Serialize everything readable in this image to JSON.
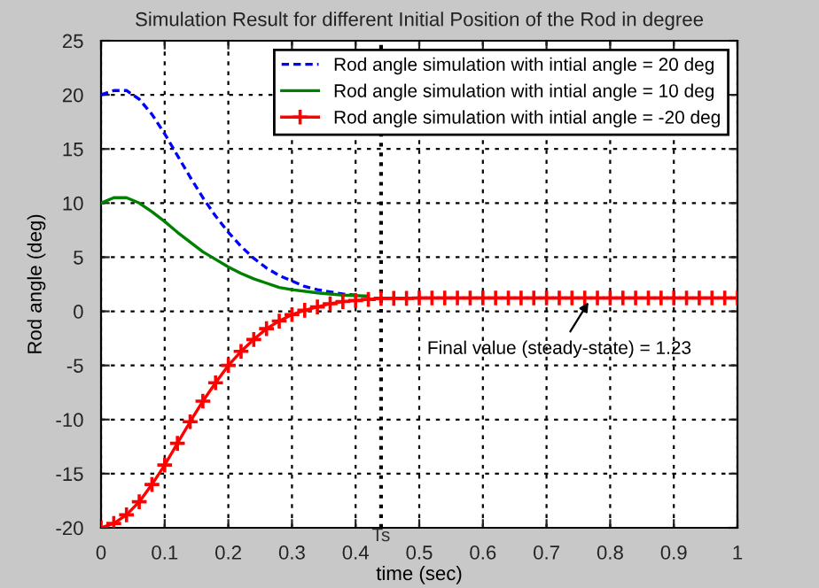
{
  "chart_data": {
    "type": "line",
    "title": "Simulation Result for different Initial Position of the Rod in degree",
    "xlabel": "time (sec)",
    "ylabel": "Rod angle (deg)",
    "xlim": [
      0,
      1
    ],
    "ylim": [
      -20,
      25
    ],
    "xticks": [
      0,
      0.1,
      0.2,
      0.3,
      0.4,
      0.5,
      0.6,
      0.7,
      0.8,
      0.9,
      1
    ],
    "yticks": [
      -20,
      -15,
      -10,
      -5,
      0,
      5,
      10,
      15,
      20,
      25
    ],
    "grid": true,
    "legend": "top right",
    "ref_lines": [
      {
        "axis": "x",
        "value": 0.44,
        "label": "Ts",
        "line_style": "dotted",
        "color": "#000000"
      }
    ],
    "annotations": [
      {
        "text": "Final value (steady-state) = 1.23",
        "x": 0.77,
        "y": 1.23
      }
    ],
    "series": [
      {
        "name": "Rod angle simulation with intial angle = 20 deg",
        "color": "#0000ff",
        "line_style": "dashed",
        "marker": "none",
        "x": [
          0,
          0.02,
          0.04,
          0.06,
          0.08,
          0.1,
          0.12,
          0.14,
          0.16,
          0.18,
          0.2,
          0.22,
          0.24,
          0.26,
          0.28,
          0.3,
          0.32,
          0.34,
          0.36,
          0.38,
          0.4
        ],
        "values": [
          20,
          20.4,
          20.4,
          19.6,
          18.2,
          16.4,
          14.4,
          12.4,
          10.5,
          8.8,
          7.3,
          6.0,
          4.9,
          4.0,
          3.3,
          2.8,
          2.3,
          2.0,
          1.8,
          1.6,
          1.5
        ]
      },
      {
        "name": "Rod angle simulation with intial angle = 10 deg",
        "color": "#008000",
        "line_style": "solid",
        "marker": "none",
        "x": [
          0,
          0.02,
          0.04,
          0.06,
          0.08,
          0.1,
          0.12,
          0.14,
          0.16,
          0.18,
          0.2,
          0.22,
          0.24,
          0.26,
          0.28,
          0.3,
          0.34,
          0.38,
          0.42
        ],
        "values": [
          10,
          10.5,
          10.5,
          10.0,
          9.2,
          8.3,
          7.3,
          6.4,
          5.5,
          4.8,
          4.1,
          3.5,
          3.0,
          2.6,
          2.2,
          2.0,
          1.7,
          1.5,
          1.4
        ]
      },
      {
        "name": "Rod angle simulation with intial angle = -20 deg",
        "color": "#ff0000",
        "line_style": "solid",
        "marker": "cross",
        "x": [
          0,
          0.02,
          0.04,
          0.06,
          0.08,
          0.1,
          0.12,
          0.14,
          0.16,
          0.18,
          0.2,
          0.22,
          0.24,
          0.26,
          0.28,
          0.3,
          0.32,
          0.34,
          0.36,
          0.38,
          0.4,
          0.42,
          0.44,
          0.46,
          0.48,
          0.5,
          0.52,
          0.54,
          0.56,
          0.58,
          0.6,
          0.62,
          0.64,
          0.66,
          0.68,
          0.7,
          0.72,
          0.74,
          0.76,
          0.78,
          0.8,
          0.82,
          0.84,
          0.86,
          0.88,
          0.9,
          0.92,
          0.94,
          0.96,
          0.98,
          1
        ],
        "values": [
          -20,
          -19.6,
          -18.8,
          -17.6,
          -16,
          -14.2,
          -12.2,
          -10.2,
          -8.3,
          -6.6,
          -5.0,
          -3.7,
          -2.6,
          -1.6,
          -0.9,
          -0.3,
          0.1,
          0.4,
          0.7,
          0.9,
          1.0,
          1.1,
          1.2,
          1.2,
          1.2,
          1.23,
          1.23,
          1.23,
          1.23,
          1.23,
          1.23,
          1.23,
          1.23,
          1.23,
          1.23,
          1.23,
          1.23,
          1.23,
          1.23,
          1.23,
          1.23,
          1.23,
          1.23,
          1.23,
          1.23,
          1.23,
          1.23,
          1.23,
          1.23,
          1.23,
          1.23
        ]
      }
    ]
  }
}
